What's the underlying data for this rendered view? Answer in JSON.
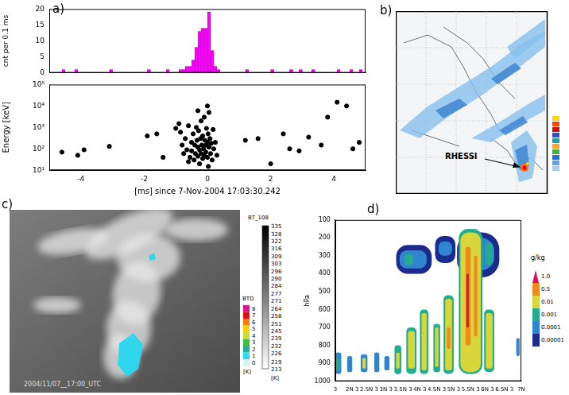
{
  "chart_data": [
    {
      "type": "histogram",
      "ylabel": "cnt per 0.1 ms",
      "bins": [
        -5,
        -4.9,
        -4.8,
        -4.7,
        -4.6,
        -4.5,
        -4.4,
        -4.3,
        -4.2,
        -4.1,
        -4,
        -3.9,
        -3.8,
        -3.7,
        -3.6,
        -3.5,
        -3.4,
        -3.3,
        -3.2,
        -3.1,
        -3,
        -2.9,
        -2.8,
        -2.7,
        -2.6,
        -2.5,
        -2.4,
        -2.3,
        -2.2,
        -2.1,
        -2,
        -1.9,
        -1.8,
        -1.7,
        -1.6,
        -1.5,
        -1.4,
        -1.3,
        -1.2,
        -1.1,
        -1,
        -0.9,
        -0.8,
        -0.7,
        -0.6,
        -0.5,
        -0.4,
        -0.3,
        -0.2,
        -0.1,
        0,
        0.1,
        0.2,
        0.3,
        0.4,
        0.5,
        0.6,
        0.7,
        0.8,
        0.9,
        1,
        1.1,
        1.2,
        1.3,
        1.4,
        1.5,
        1.6,
        1.7,
        1.8,
        1.9,
        2,
        2.1,
        2.2,
        2.3,
        2.4,
        2.5,
        2.6,
        2.7,
        2.8,
        2.9,
        3,
        3.1,
        3.2,
        3.3,
        3.4,
        3.5,
        3.6,
        3.7,
        3.8,
        3.9,
        4,
        4.1,
        4.2,
        4.3,
        4.4,
        4.5,
        4.6,
        4.7,
        4.8,
        4.9,
        5
      ],
      "values": [
        0,
        0,
        0,
        0,
        1,
        0,
        0,
        0,
        1,
        0,
        0,
        0,
        0,
        0,
        0,
        0,
        0,
        0,
        0,
        1,
        0,
        0,
        0,
        0,
        0,
        0,
        0,
        0,
        0,
        0,
        0,
        1,
        0,
        0,
        0,
        0,
        0,
        1,
        0,
        0,
        0,
        1,
        1,
        2,
        2,
        4,
        8,
        13,
        14,
        14,
        19,
        7,
        2,
        1,
        0,
        0,
        0,
        0,
        0,
        0,
        0,
        0,
        1,
        0,
        0,
        0,
        0,
        0,
        0,
        0,
        1,
        0,
        0,
        0,
        0,
        0,
        1,
        0,
        0,
        1,
        0,
        0,
        0,
        1,
        0,
        0,
        0,
        0,
        0,
        0,
        0,
        1,
        0,
        0,
        0,
        1,
        0,
        0,
        1,
        0
      ],
      "color": "#ff00ff",
      "xlim": [
        -5,
        5
      ],
      "xticks": [
        -4,
        -2,
        0,
        2,
        4
      ],
      "ylim": [
        0,
        20
      ],
      "yticks": [
        0,
        5,
        10,
        15,
        20
      ],
      "grid": false,
      "tick_labels": "y"
    },
    {
      "type": "scatter",
      "ylabel": "Energy [keV]",
      "xlabel": "[ms] since 7-Nov-2004 17:03:30.242",
      "x": [
        -4.6,
        -4.1,
        -3.9,
        -3.1,
        -1.9,
        -1.6,
        -1.4,
        -1.0,
        -0.9,
        -0.85,
        -0.8,
        -0.75,
        -0.7,
        -0.65,
        -0.6,
        -0.6,
        -0.55,
        -0.5,
        -0.5,
        -0.45,
        -0.42,
        -0.4,
        -0.38,
        -0.35,
        -0.33,
        -0.3,
        -0.3,
        -0.3,
        -0.28,
        -0.25,
        -0.25,
        -0.22,
        -0.2,
        -0.2,
        -0.18,
        -0.15,
        -0.15,
        -0.12,
        -0.1,
        -0.1,
        -0.08,
        -0.05,
        -0.05,
        -0.03,
        0,
        0,
        0,
        0.02,
        0.03,
        0.05,
        0.05,
        0.08,
        0.1,
        0.12,
        0.15,
        0.18,
        0.2,
        0.25,
        0.3,
        1.2,
        1.6,
        2.0,
        2.4,
        2.6,
        2.9,
        3.2,
        3.6,
        3.8,
        4.1,
        4.4,
        4.6,
        4.8
      ],
      "values": [
        70,
        50,
        90,
        130,
        400,
        500,
        40,
        900,
        1500,
        600,
        150,
        60,
        300,
        90,
        1200,
        25,
        40,
        200,
        80,
        500,
        30,
        150,
        60,
        1000,
        250,
        45,
        120,
        6000,
        700,
        20,
        90,
        300,
        2000,
        60,
        150,
        35,
        400,
        100,
        3000,
        50,
        250,
        70,
        150,
        900,
        40,
        200,
        10000,
        500,
        15,
        120,
        5000,
        300,
        60,
        180,
        30,
        800,
        100,
        200,
        50,
        250,
        300,
        20,
        500,
        100,
        80,
        350,
        150,
        3000,
        15000,
        10000,
        100,
        200
      ],
      "color": "#000000",
      "marker": "circle",
      "xlim": [
        -5,
        5
      ],
      "xticks": [
        -4,
        -2,
        0,
        2,
        4
      ],
      "ylim": [
        10,
        100000
      ],
      "yticks": [
        {
          "value": 10,
          "label": "10¹"
        },
        {
          "value": 100,
          "label": "10²"
        },
        {
          "value": 1000,
          "label": "10³"
        },
        {
          "value": 10000,
          "label": "10⁴"
        },
        {
          "value": 100000,
          "label": "10⁵"
        }
      ],
      "log": "y",
      "grid": false
    },
    {
      "type": "contour",
      "ylabel": "hPa",
      "categories": [
        "3",
        "2N 3",
        "2.5N 3",
        "3N 3",
        "3.5N 3",
        "4N 3",
        "4.5N 3",
        "5N 3",
        "5.5N 3",
        "6N 3",
        "6.5N 3",
        "7N"
      ],
      "xlim": [
        0,
        11
      ],
      "ylim": [
        1000,
        100
      ],
      "yticks": [
        100,
        200,
        300,
        400,
        500,
        600,
        700,
        800,
        900,
        1000
      ],
      "grid": false,
      "colorbar": {
        "title": "g/kg",
        "levels": [
          1e-05,
          0.0001,
          0.001,
          0.01,
          0.5,
          1
        ],
        "ticks": [
          1e-05,
          0.0001,
          0.001,
          0.01,
          0.5,
          {
            "value": 1,
            "label": "1.0"
          }
        ],
        "colors": [
          "#1b2a8e",
          "#2f86cf",
          "#23ad8f",
          "#d9d63a",
          "#f08a1e",
          "#e0105a"
        ]
      },
      "cells": [
        {
          "x": [
            3.6,
            5.7
          ],
          "p": [
            400,
            240
          ],
          "level": 1e-05
        },
        {
          "x": [
            3.8,
            5.4
          ],
          "p": [
            370,
            270
          ],
          "level": 0.0001
        },
        {
          "x": [
            4.1,
            4.6
          ],
          "p": [
            350,
            290
          ],
          "level": 0.001
        },
        {
          "x": [
            5.9,
            7.1
          ],
          "p": [
            340,
            190
          ],
          "level": 1e-05
        },
        {
          "x": [
            6.1,
            6.9
          ],
          "p": [
            300,
            220
          ],
          "level": 0.0001
        },
        {
          "x": [
            7.2,
            9.7
          ],
          "p": [
            420,
            170
          ],
          "level": 1e-05
        },
        {
          "x": [
            7.4,
            9.4
          ],
          "p": [
            380,
            200
          ],
          "level": 0.0001
        },
        {
          "x": [
            8.9,
            9.3
          ],
          "p": [
            350,
            230
          ],
          "level": 0.001
        },
        {
          "x": [
            0,
            0.35
          ],
          "p": [
            960,
            840
          ],
          "level": 0.0001
        },
        {
          "x": [
            0.05,
            0.25
          ],
          "p": [
            940,
            870
          ],
          "level": 0.001
        },
        {
          "x": [
            0.7,
            1.0
          ],
          "p": [
            950,
            860
          ],
          "level": 0.0001
        },
        {
          "x": [
            1.5,
            1.9
          ],
          "p": [
            950,
            850
          ],
          "level": 0.0001
        },
        {
          "x": [
            1.6,
            1.8
          ],
          "p": [
            930,
            870
          ],
          "level": 0.01
        },
        {
          "x": [
            2.3,
            2.6
          ],
          "p": [
            950,
            840
          ],
          "level": 0.0001
        },
        {
          "x": [
            2.9,
            3.2
          ],
          "p": [
            940,
            860
          ],
          "level": 0.0001
        },
        {
          "x": [
            3.5,
            3.9
          ],
          "p": [
            960,
            800
          ],
          "level": 0.001
        },
        {
          "x": [
            3.6,
            3.8
          ],
          "p": [
            930,
            840
          ],
          "level": 0.01
        },
        {
          "x": [
            4.2,
            4.8
          ],
          "p": [
            960,
            700
          ],
          "level": 0.001
        },
        {
          "x": [
            4.3,
            4.7
          ],
          "p": [
            930,
            720
          ],
          "level": 0.01
        },
        {
          "x": [
            5.0,
            5.5
          ],
          "p": [
            960,
            600
          ],
          "level": 0.001
        },
        {
          "x": [
            5.1,
            5.4
          ],
          "p": [
            940,
            620
          ],
          "level": 0.01
        },
        {
          "x": [
            5.8,
            6.2
          ],
          "p": [
            950,
            680
          ],
          "level": 0.001
        },
        {
          "x": [
            5.9,
            6.1
          ],
          "p": [
            920,
            700
          ],
          "level": 0.01
        },
        {
          "x": [
            6.4,
            7.0
          ],
          "p": [
            960,
            520
          ],
          "level": 0.001
        },
        {
          "x": [
            6.5,
            6.9
          ],
          "p": [
            940,
            540
          ],
          "level": 0.01
        },
        {
          "x": [
            6.6,
            6.8
          ],
          "p": [
            820,
            700
          ],
          "level": 0.5
        },
        {
          "x": [
            7.3,
            8.7
          ],
          "p": [
            960,
            150
          ],
          "level": 0.001
        },
        {
          "x": [
            7.4,
            8.6
          ],
          "p": [
            950,
            170
          ],
          "level": 0.01
        },
        {
          "x": [
            7.7,
            8.0
          ],
          "p": [
            800,
            250
          ],
          "level": 0.5
        },
        {
          "x": [
            7.75,
            7.9
          ],
          "p": [
            700,
            400
          ],
          "level": 1
        },
        {
          "x": [
            8.2,
            8.4
          ],
          "p": [
            750,
            300
          ],
          "level": 0.5
        },
        {
          "x": [
            8.8,
            9.4
          ],
          "p": [
            950,
            600
          ],
          "level": 0.001
        },
        {
          "x": [
            8.9,
            9.3
          ],
          "p": [
            930,
            620
          ],
          "level": 0.01
        },
        {
          "x": [
            10.7,
            10.9
          ],
          "p": [
            860,
            760
          ],
          "level": 0.0001
        }
      ]
    }
  ],
  "panel_labels": [
    "a)",
    "b)",
    "c)",
    "d)"
  ],
  "map_b": {
    "annotation": "RHESSI"
  },
  "image_c": {
    "timestamp": "2004/11/07__17:00_UTC",
    "colorbar_title": "BT_108",
    "colorbar_ticks": [
      335,
      328,
      322,
      316,
      309,
      303,
      296,
      290,
      284,
      277,
      271,
      264,
      258,
      251,
      245,
      239,
      232,
      226,
      219,
      213
    ],
    "colorbar_unit": "[K]",
    "btd_title": "BTD",
    "btd_ticks": [
      8,
      7,
      6,
      5,
      4,
      3,
      2,
      1,
      0
    ],
    "btd_unit": "[K]"
  }
}
